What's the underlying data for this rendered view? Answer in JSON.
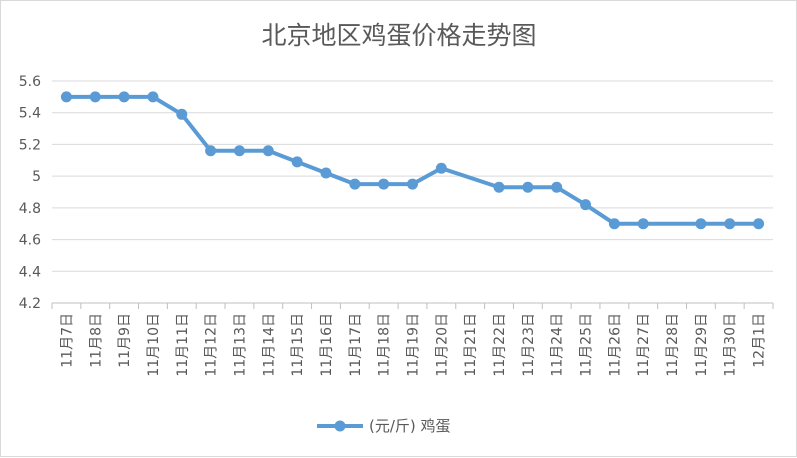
{
  "chart_data": {
    "type": "line",
    "title": "北京地区鸡蛋价格走势图",
    "xlabel": "",
    "ylabel": "",
    "ylim": [
      4.2,
      5.6
    ],
    "yticks": [
      "4.2",
      "4.4",
      "4.6",
      "4.8",
      "5",
      "5.2",
      "5.4",
      "5.6"
    ],
    "grid": true,
    "legend_position": "bottom",
    "categories": [
      "11月7日",
      "11月8日",
      "11月9日",
      "11月10日",
      "11月11日",
      "11月12日",
      "11月13日",
      "11月14日",
      "11月15日",
      "11月16日",
      "11月17日",
      "11月18日",
      "11月19日",
      "11月20日",
      "11月21日",
      "11月22日",
      "11月23日",
      "11月24日",
      "11月25日",
      "11月26日",
      "11月27日",
      "11月28日",
      "11月29日",
      "11月30日",
      "12月1日"
    ],
    "series": [
      {
        "name": "(元/斤) 鸡蛋",
        "color": "#5b9bd5",
        "values": [
          5.5,
          5.5,
          5.5,
          5.5,
          5.39,
          5.16,
          5.16,
          5.16,
          5.09,
          5.02,
          4.95,
          4.95,
          4.95,
          5.05,
          null,
          4.93,
          4.93,
          4.93,
          4.82,
          4.7,
          4.7,
          null,
          4.7,
          4.7,
          4.7
        ]
      }
    ]
  }
}
